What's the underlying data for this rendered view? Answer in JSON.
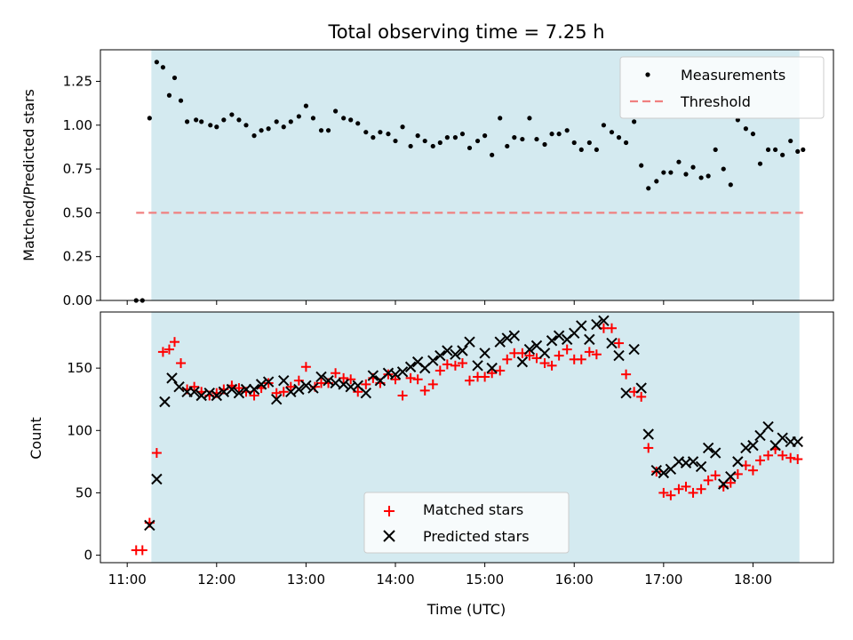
{
  "chart_data": [
    {
      "type": "scatter",
      "title": "Total observing time = 7.25 h",
      "xlabel": "",
      "ylabel": "Matched/Predicted stars",
      "xlim_hours_utc": [
        10.7,
        18.9
      ],
      "ylim": [
        0,
        1.43
      ],
      "yticks": [
        "0.00",
        "0.25",
        "0.50",
        "0.75",
        "1.00",
        "1.25"
      ],
      "observing_window_utc_hours": [
        11.27,
        18.52
      ],
      "shade_color": "#d4eaf0",
      "legend": {
        "placement": "top-right",
        "entries": [
          "Measurements",
          "Threshold"
        ]
      },
      "series": [
        {
          "name": "Measurements",
          "color": "#000000",
          "marker": "dot",
          "x_hours": [
            11.1,
            11.17,
            11.25,
            11.33,
            11.4,
            11.47,
            11.53,
            11.6,
            11.67,
            11.77,
            11.83,
            11.93,
            12.0,
            12.08,
            12.17,
            12.25,
            12.33,
            12.42,
            12.5,
            12.58,
            12.67,
            12.75,
            12.83,
            12.92,
            13.0,
            13.08,
            13.17,
            13.25,
            13.33,
            13.42,
            13.5,
            13.58,
            13.67,
            13.75,
            13.83,
            13.92,
            14.0,
            14.08,
            14.17,
            14.25,
            14.33,
            14.42,
            14.5,
            14.58,
            14.67,
            14.75,
            14.83,
            14.92,
            15.0,
            15.08,
            15.17,
            15.25,
            15.33,
            15.42,
            15.5,
            15.58,
            15.67,
            15.75,
            15.83,
            15.92,
            16.0,
            16.08,
            16.17,
            16.25,
            16.33,
            16.42,
            16.5,
            16.58,
            16.67,
            16.75,
            16.83,
            16.92,
            17.0,
            17.08,
            17.17,
            17.25,
            17.33,
            17.42,
            17.5,
            17.58,
            17.67,
            17.75,
            17.83,
            17.92,
            18.0,
            18.08,
            18.17,
            18.25,
            18.33,
            18.42,
            18.5,
            18.56
          ],
          "y": [
            0.0,
            0.0,
            1.04,
            1.36,
            1.33,
            1.17,
            1.27,
            1.14,
            1.02,
            1.03,
            1.02,
            1.0,
            0.99,
            1.03,
            1.06,
            1.03,
            1.0,
            0.94,
            0.97,
            0.98,
            1.02,
            0.99,
            1.02,
            1.05,
            1.11,
            1.04,
            0.97,
            0.97,
            1.08,
            1.04,
            1.03,
            1.01,
            0.96,
            0.93,
            0.96,
            0.95,
            0.91,
            0.99,
            0.88,
            0.94,
            0.91,
            0.88,
            0.9,
            0.93,
            0.93,
            0.95,
            0.87,
            0.91,
            0.94,
            0.83,
            1.04,
            0.88,
            0.93,
            0.92,
            1.04,
            0.92,
            0.89,
            0.95,
            0.95,
            0.97,
            0.9,
            0.86,
            0.9,
            0.86,
            1.0,
            0.96,
            0.93,
            0.9,
            1.02,
            0.77,
            0.64,
            0.68,
            0.73,
            0.73,
            0.79,
            0.72,
            0.76,
            0.7,
            0.71,
            0.86,
            0.75,
            0.66,
            1.03,
            0.98,
            0.95,
            0.78,
            0.86,
            0.86,
            0.83,
            0.91,
            0.85,
            0.86
          ]
        },
        {
          "name": "Threshold",
          "color": "#f08080",
          "style": "dashed",
          "x_hours": [
            11.1,
            18.56
          ],
          "y": [
            0.5,
            0.5
          ]
        }
      ]
    },
    {
      "type": "scatter",
      "title": "",
      "xlabel": "Time (UTC)",
      "ylabel": "Count",
      "xlim_hours_utc": [
        10.7,
        18.9
      ],
      "ylim": [
        -6,
        195
      ],
      "xticks": [
        "11:00",
        "12:00",
        "13:00",
        "14:00",
        "15:00",
        "16:00",
        "17:00",
        "18:00"
      ],
      "yticks": [
        "0",
        "50",
        "100",
        "150"
      ],
      "observing_window_utc_hours": [
        11.27,
        18.52
      ],
      "shade_color": "#d4eaf0",
      "legend": {
        "placement": "bottom-center",
        "entries": [
          "Matched stars",
          "Predicted stars"
        ]
      },
      "series": [
        {
          "name": "Matched stars",
          "color": "#ff0000",
          "marker": "plus",
          "x_hours": [
            11.1,
            11.17,
            11.25,
            11.33,
            11.4,
            11.47,
            11.53,
            11.6,
            11.67,
            11.75,
            11.83,
            11.92,
            12.0,
            12.08,
            12.17,
            12.25,
            12.33,
            12.42,
            12.5,
            12.58,
            12.67,
            12.75,
            12.83,
            12.92,
            13.0,
            13.1,
            13.17,
            13.25,
            13.33,
            13.42,
            13.5,
            13.58,
            13.67,
            13.75,
            13.83,
            13.92,
            14.0,
            14.08,
            14.17,
            14.25,
            14.33,
            14.42,
            14.5,
            14.58,
            14.67,
            14.75,
            14.83,
            14.92,
            15.0,
            15.08,
            15.17,
            15.25,
            15.33,
            15.42,
            15.5,
            15.58,
            15.67,
            15.75,
            15.83,
            15.92,
            16.0,
            16.08,
            16.17,
            16.25,
            16.33,
            16.42,
            16.5,
            16.58,
            16.67,
            16.75,
            16.83,
            16.92,
            17.0,
            17.08,
            17.17,
            17.25,
            17.33,
            17.42,
            17.5,
            17.58,
            17.67,
            17.75,
            17.83,
            17.92,
            18.0,
            18.08,
            18.17,
            18.25,
            18.33,
            18.42,
            18.5
          ],
          "y": [
            4,
            4,
            26,
            82,
            163,
            165,
            171,
            154,
            133,
            135,
            131,
            128,
            130,
            133,
            136,
            134,
            131,
            128,
            134,
            138,
            130,
            131,
            135,
            140,
            151,
            135,
            138,
            138,
            146,
            142,
            141,
            131,
            137,
            142,
            138,
            145,
            141,
            128,
            142,
            141,
            132,
            137,
            148,
            153,
            152,
            154,
            140,
            143,
            143,
            146,
            148,
            157,
            162,
            162,
            160,
            158,
            154,
            152,
            160,
            165,
            157,
            157,
            163,
            161,
            182,
            182,
            170,
            145,
            131,
            127,
            86,
            67,
            50,
            48,
            53,
            55,
            50,
            53,
            60,
            64,
            55,
            58,
            65,
            72,
            68,
            76,
            80,
            85,
            80,
            78,
            77
          ]
        },
        {
          "name": "Predicted stars",
          "color": "#000000",
          "marker": "x",
          "x_hours": [
            11.25,
            11.33,
            11.42,
            11.5,
            11.58,
            11.67,
            11.75,
            11.83,
            11.92,
            12.0,
            12.08,
            12.17,
            12.25,
            12.33,
            12.42,
            12.5,
            12.58,
            12.67,
            12.75,
            12.83,
            12.92,
            13.0,
            13.08,
            13.17,
            13.25,
            13.33,
            13.42,
            13.5,
            13.58,
            13.67,
            13.75,
            13.83,
            13.92,
            14.0,
            14.08,
            14.17,
            14.25,
            14.33,
            14.42,
            14.5,
            14.58,
            14.67,
            14.75,
            14.83,
            14.92,
            15.0,
            15.08,
            15.17,
            15.25,
            15.33,
            15.42,
            15.5,
            15.58,
            15.67,
            15.75,
            15.83,
            15.92,
            16.0,
            16.08,
            16.17,
            16.25,
            16.33,
            16.42,
            16.5,
            16.58,
            16.67,
            16.75,
            16.83,
            16.92,
            17.0,
            17.08,
            17.17,
            17.25,
            17.33,
            17.42,
            17.5,
            17.58,
            17.67,
            17.75,
            17.83,
            17.92,
            18.0,
            18.08,
            18.17,
            18.25,
            18.33,
            18.42,
            18.5
          ],
          "y": [
            24,
            61,
            123,
            142,
            135,
            131,
            131,
            128,
            130,
            128,
            131,
            133,
            130,
            133,
            133,
            137,
            139,
            125,
            140,
            131,
            133,
            136,
            134,
            143,
            140,
            138,
            137,
            135,
            136,
            130,
            144,
            140,
            146,
            145,
            147,
            151,
            155,
            150,
            156,
            160,
            164,
            161,
            164,
            171,
            152,
            162,
            150,
            171,
            174,
            176,
            155,
            165,
            168,
            162,
            172,
            176,
            173,
            178,
            184,
            173,
            185,
            188,
            170,
            160,
            130,
            165,
            134,
            97,
            68,
            66,
            69,
            75,
            74,
            75,
            71,
            86,
            82,
            57,
            63,
            75,
            86,
            88,
            96,
            103,
            88,
            94,
            91,
            91
          ]
        }
      ]
    }
  ]
}
